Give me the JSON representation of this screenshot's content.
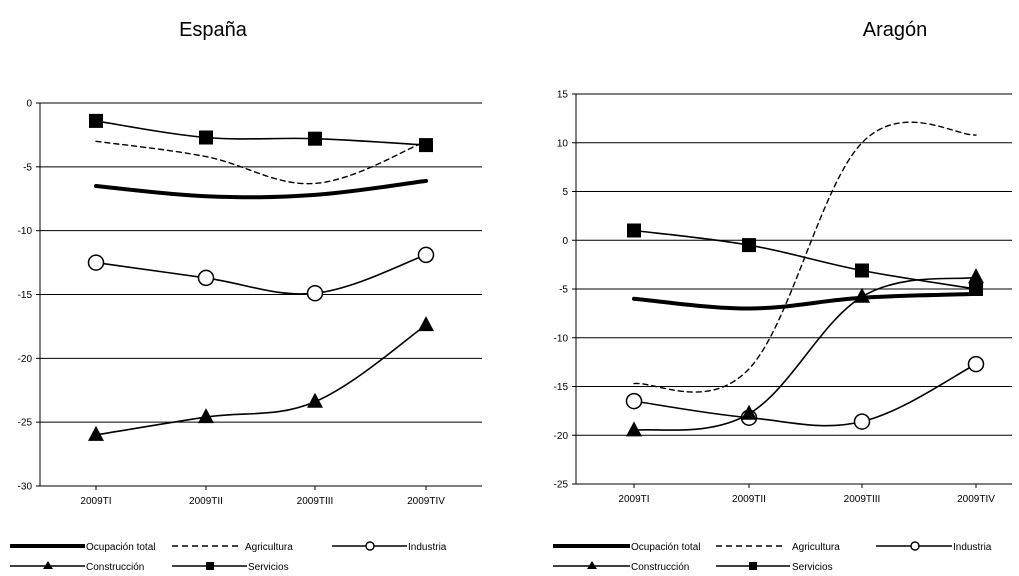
{
  "chart_data": [
    {
      "type": "line",
      "title": "España",
      "categories": [
        "2009TI",
        "2009TII",
        "2009TIII",
        "2009TIV"
      ],
      "ylim": [
        -30,
        0
      ],
      "yticks": [
        "0",
        "-5",
        "-10",
        "-15",
        "-20",
        "-25",
        "-30"
      ],
      "ytick_values": [
        0,
        -5,
        -10,
        -15,
        -20,
        -25,
        -30
      ],
      "grid": true,
      "legend_position": "bottom",
      "series": [
        {
          "name": "Ocupación total",
          "values": [
            -6.5,
            -7.3,
            -7.2,
            -6.1
          ]
        },
        {
          "name": "Agricultura",
          "values": [
            -3.0,
            -4.2,
            -6.3,
            -3.0
          ]
        },
        {
          "name": "Industria",
          "values": [
            -12.5,
            -13.7,
            -14.9,
            -11.9
          ]
        },
        {
          "name": "Construcción",
          "values": [
            -26.0,
            -24.6,
            -23.4,
            -17.4
          ]
        },
        {
          "name": "Servicios",
          "values": [
            -1.4,
            -2.7,
            -2.8,
            -3.3
          ]
        }
      ]
    },
    {
      "type": "line",
      "title": "Aragón",
      "categories": [
        "2009TI",
        "2009TII",
        "2009TIII",
        "2009TIV"
      ],
      "ylim": [
        -25,
        15
      ],
      "yticks": [
        "15",
        "10",
        "5",
        "0",
        "-5",
        "-10",
        "-15",
        "-20",
        "-25"
      ],
      "ytick_values": [
        15,
        10,
        5,
        0,
        -5,
        -10,
        -15,
        -20,
        -25
      ],
      "grid": true,
      "legend_position": "bottom",
      "series": [
        {
          "name": "Ocupación total",
          "values": [
            -6.0,
            -7.0,
            -5.9,
            -5.5
          ]
        },
        {
          "name": "Agricultura",
          "values": [
            -14.7,
            -13.2,
            10.0,
            10.8
          ]
        },
        {
          "name": "Industria",
          "values": [
            -16.5,
            -18.2,
            -18.6,
            -12.7
          ]
        },
        {
          "name": "Construcción",
          "values": [
            -19.5,
            -17.8,
            -5.8,
            -3.8
          ]
        },
        {
          "name": "Servicios",
          "values": [
            1.0,
            -0.5,
            -3.1,
            -5.0
          ]
        }
      ]
    }
  ],
  "legend": {
    "ocupacion": "Ocupación total",
    "agricultura": "Agricultura",
    "industria": "Industria",
    "construccion": "Construcción",
    "servicios": "Servicios"
  }
}
